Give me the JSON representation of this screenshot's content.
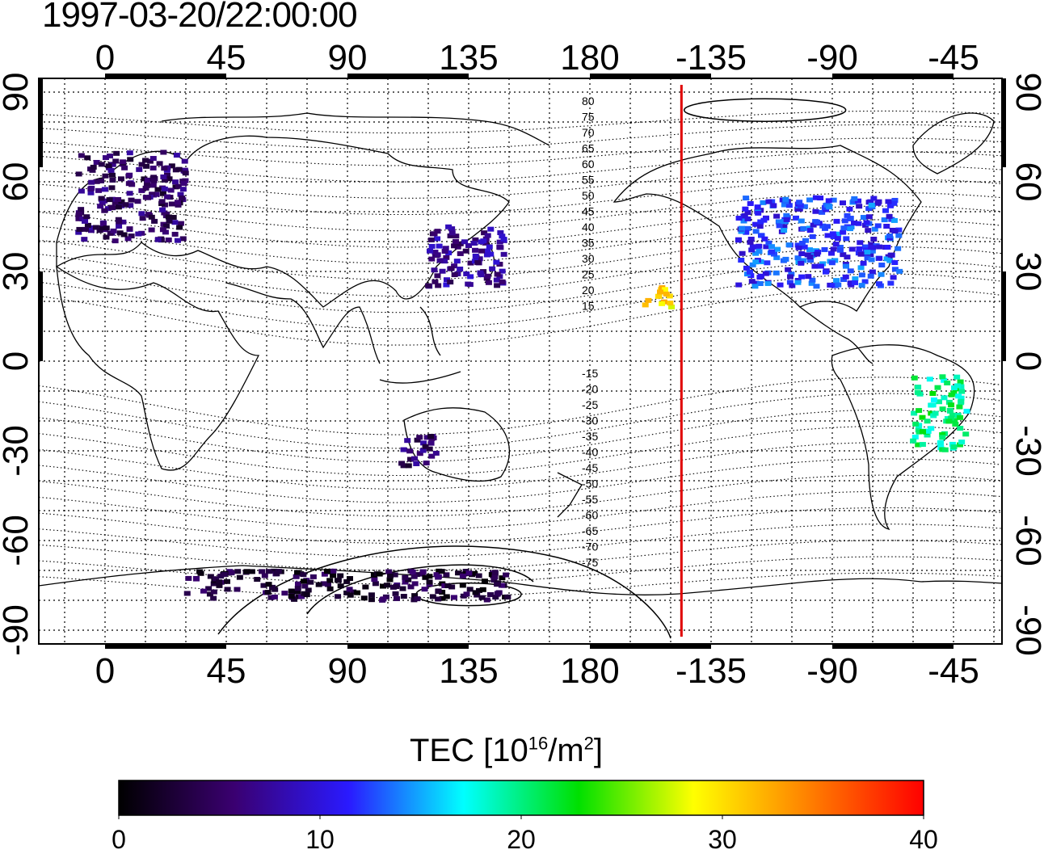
{
  "title": "1997-03-20/22:00:00",
  "map": {
    "x_tick_labels": [
      "0",
      "45",
      "90",
      "135",
      "180",
      "-135",
      "-90",
      "-45"
    ],
    "y_tick_labels": [
      "90",
      "60",
      "30",
      "0",
      "-30",
      "-60",
      "-90"
    ],
    "mlat_labels_north": [
      "80",
      "75",
      "70",
      "65",
      "60",
      "55",
      "50",
      "45",
      "40",
      "35",
      "30",
      "25",
      "20",
      "15"
    ],
    "mlat_labels_south": [
      "-15",
      "-20",
      "-25",
      "-30",
      "-35",
      "-40",
      "-45",
      "-50",
      "-55",
      "-60",
      "-65",
      "-70",
      "-75"
    ],
    "terminator_longitude": -146,
    "terminator_color": "#e00000",
    "grid": "dotted",
    "coastlines": "black"
  },
  "colorbar": {
    "label_prefix": "TEC  [10",
    "label_sup1": "16",
    "label_mid": "/m",
    "label_sup2": "2",
    "label_suffix": "]",
    "tick_labels": [
      "0",
      "10",
      "20",
      "30",
      "40"
    ],
    "range": [
      0,
      40
    ],
    "stops": [
      "#000000",
      "#3a0070",
      "#2a1aff",
      "#00ffff",
      "#00e000",
      "#ffff00",
      "#ff8000",
      "#ff0000"
    ]
  },
  "chart_data": {
    "type": "heatmap",
    "title": "1997-03-20/22:00:00",
    "colorbar_range": [
      0,
      40
    ],
    "regions": [
      {
        "lon_range": [
          -10,
          30
        ],
        "lat_range": [
          40,
          70
        ],
        "tec": 5
      },
      {
        "lon_range": [
          120,
          150
        ],
        "lat_range": [
          25,
          45
        ],
        "tec": 7
      },
      {
        "lon_range": [
          -125,
          -65
        ],
        "lat_range": [
          25,
          55
        ],
        "tec": 12
      },
      {
        "lon_range": [
          -160,
          -148
        ],
        "lat_range": [
          18,
          25
        ],
        "tec": 30
      },
      {
        "lon_range": [
          -60,
          -40
        ],
        "lat_range": [
          -30,
          -5
        ],
        "tec": 20
      },
      {
        "lon_range": [
          110,
          125
        ],
        "lat_range": [
          -35,
          -25
        ],
        "tec": 5
      },
      {
        "lon_range": [
          30,
          150
        ],
        "lat_range": [
          -80,
          -70
        ],
        "tec": 3
      }
    ]
  }
}
